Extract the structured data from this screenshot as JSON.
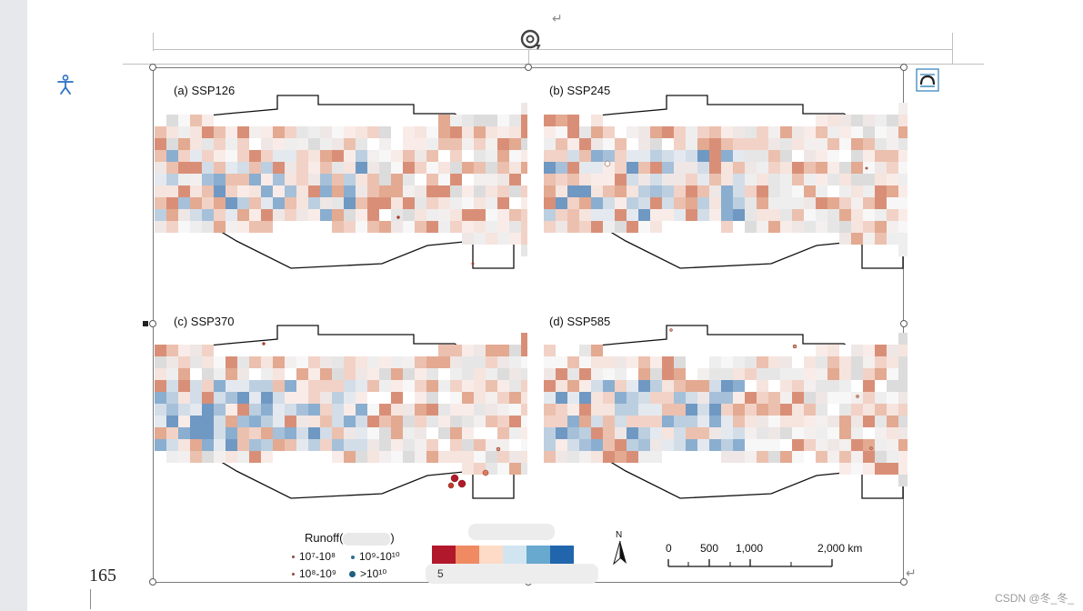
{
  "panels": [
    {
      "label": "(a) SSP126"
    },
    {
      "label": "(b) SSP245"
    },
    {
      "label": "(c) SSP370"
    },
    {
      "label": "(d) SSP585"
    }
  ],
  "legend": {
    "title": "Runoff(",
    "title_close": ")",
    "items": [
      {
        "label": "10⁷-10⁸"
      },
      {
        "label": "10⁹-10¹⁰"
      },
      {
        "label": "10⁸-10⁹"
      },
      {
        "label": ">10¹⁰"
      }
    ],
    "colorbar_label": "5",
    "colors": [
      "#b2182b",
      "#ef8a62",
      "#fddbc7",
      "#d1e5f0",
      "#67a9cf",
      "#2166ac"
    ]
  },
  "north_arrow": "N",
  "scale_bar": {
    "ticks": [
      "0",
      "500",
      "1,000",
      "2,000 km"
    ]
  },
  "page_number": "165",
  "watermark": "CSDN @冬_冬_",
  "icons": {
    "paragraph_mark": "↵",
    "accessibility": "accessibility-icon",
    "rotate": "rotate-handle-icon",
    "layout": "layout-options-icon"
  }
}
